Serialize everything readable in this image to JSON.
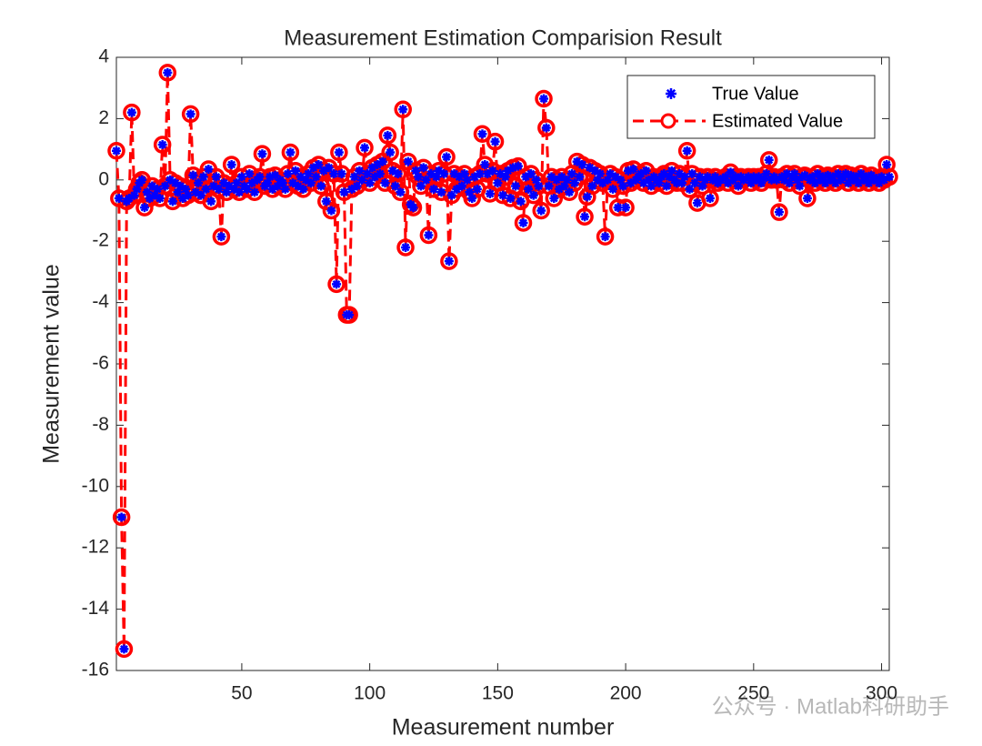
{
  "chart_data": {
    "type": "line",
    "title": "Measurement Estimation Comparision Result",
    "xlabel": "Measurement number",
    "ylabel": "Measurement value",
    "watermark": "公众号 · Matlab科研助手",
    "xlim": [
      1,
      303
    ],
    "ylim": [
      -16,
      4
    ],
    "xticks": [
      50,
      100,
      150,
      200,
      250,
      300
    ],
    "yticks": [
      -16,
      -14,
      -12,
      -10,
      -8,
      -6,
      -4,
      -2,
      0,
      2,
      4
    ],
    "legend": "northeast",
    "x": [
      1,
      2,
      3,
      4,
      5,
      6,
      7,
      8,
      9,
      10,
      11,
      12,
      13,
      14,
      15,
      16,
      17,
      18,
      19,
      20,
      21,
      22,
      23,
      24,
      25,
      26,
      27,
      28,
      29,
      30,
      31,
      32,
      33,
      34,
      35,
      36,
      37,
      38,
      39,
      40,
      41,
      42,
      43,
      44,
      45,
      46,
      47,
      48,
      49,
      50,
      51,
      52,
      53,
      54,
      55,
      56,
      57,
      58,
      59,
      60,
      61,
      62,
      63,
      64,
      65,
      66,
      67,
      68,
      69,
      70,
      71,
      72,
      73,
      74,
      75,
      76,
      77,
      78,
      79,
      80,
      81,
      82,
      83,
      84,
      85,
      86,
      87,
      88,
      89,
      90,
      91,
      92,
      93,
      94,
      95,
      96,
      97,
      98,
      99,
      100,
      101,
      102,
      103,
      104,
      105,
      106,
      107,
      108,
      109,
      110,
      111,
      112,
      113,
      114,
      115,
      116,
      117,
      118,
      119,
      120,
      121,
      122,
      123,
      124,
      125,
      126,
      127,
      128,
      129,
      130,
      131,
      132,
      133,
      134,
      135,
      136,
      137,
      138,
      139,
      140,
      141,
      142,
      143,
      144,
      145,
      146,
      147,
      148,
      149,
      150,
      151,
      152,
      153,
      154,
      155,
      156,
      157,
      158,
      159,
      160,
      161,
      162,
      163,
      164,
      165,
      166,
      167,
      168,
      169,
      170,
      171,
      172,
      173,
      174,
      175,
      176,
      177,
      178,
      179,
      180,
      181,
      182,
      183,
      184,
      185,
      186,
      187,
      188,
      189,
      190,
      191,
      192,
      193,
      194,
      195,
      196,
      197,
      198,
      199,
      200,
      201,
      202,
      203,
      204,
      205,
      206,
      207,
      208,
      209,
      210,
      211,
      212,
      213,
      214,
      215,
      216,
      217,
      218,
      219,
      220,
      221,
      222,
      223,
      224,
      225,
      226,
      227,
      228,
      229,
      230,
      231,
      232,
      233,
      234,
      235,
      236,
      237,
      238,
      239,
      240,
      241,
      242,
      243,
      244,
      245,
      246,
      247,
      248,
      249,
      250,
      251,
      252,
      253,
      254,
      255,
      256,
      257,
      258,
      259,
      260,
      261,
      262,
      263,
      264,
      265,
      266,
      267,
      268,
      269,
      270,
      271,
      272,
      273,
      274,
      275,
      276,
      277,
      278,
      279,
      280,
      281,
      282,
      283,
      284,
      285,
      286,
      287,
      288,
      289,
      290,
      291,
      292,
      293,
      294,
      295,
      296,
      297,
      298,
      299,
      300,
      301,
      302,
      303
    ],
    "series": [
      {
        "name": "True Value",
        "color": "#0000ff",
        "values": [
          0.95,
          -0.6,
          -11,
          -15.3,
          -0.7,
          -0.6,
          2.2,
          -0.5,
          -0.3,
          -0.1,
          0,
          -0.9,
          -0.4,
          -0.6,
          -0.2,
          -0.5,
          -0.3,
          -0.6,
          1.15,
          -0.2,
          3.5,
          0,
          -0.7,
          -0.1,
          -0.4,
          -0.2,
          -0.6,
          -0.3,
          -0.5,
          2.15,
          0.15,
          -0.4,
          -0.1,
          -0.5,
          0.1,
          -0.3,
          0.35,
          -0.7,
          -0.2,
          0.1,
          -0.3,
          -1.85,
          -0.1,
          -0.4,
          -0.2,
          0.5,
          -0.3,
          -0.1,
          -0.4,
          0.1,
          -0.2,
          -0.3,
          0.2,
          -0.1,
          -0.4,
          0,
          0.1,
          0.85,
          -0.2,
          -0.1,
          0.1,
          -0.3,
          0.15,
          -0.2,
          0,
          -0.1,
          -0.3,
          0.2,
          0.9,
          -0.1,
          0.3,
          -0.2,
          0.1,
          -0.3,
          0,
          0.2,
          -0.1,
          0.4,
          0.1,
          0.5,
          -0.2,
          0.3,
          -0.7,
          0.4,
          -1,
          0.2,
          -3.4,
          0.9,
          0.2,
          -0.4,
          -4.4,
          -4.4,
          -0.3,
          0.1,
          -0.2,
          0.3,
          0,
          1.05,
          0.2,
          -0.1,
          0.4,
          0.1,
          0.5,
          0.2,
          0.6,
          -0.1,
          1.45,
          0.9,
          0.3,
          -0.2,
          0.2,
          -0.4,
          2.3,
          -2.2,
          0.6,
          -0.8,
          -0.9,
          0.3,
          0.1,
          -0.2,
          0.4,
          0,
          -1.8,
          0.2,
          -0.3,
          0.1,
          0.3,
          -0.4,
          0.2,
          0.75,
          -2.65,
          -0.5,
          0.2,
          -0.3,
          0.1,
          -0.2,
          0.2,
          0,
          -0.4,
          -0.6,
          0.1,
          -0.3,
          0.2,
          1.5,
          0.5,
          0.2,
          -0.45,
          0.3,
          1.25,
          -0.1,
          0.2,
          -0.5,
          0.1,
          0.3,
          -0.6,
          0.4,
          -0.2,
          0.45,
          -0.7,
          -1.4,
          0.1,
          -0.3,
          0.2,
          -0.5,
          0,
          -0.2,
          -1,
          2.65,
          1.7,
          -0.2,
          0.1,
          -0.6,
          0,
          -0.3,
          0.1,
          -0.2,
          0,
          -0.4,
          0.2,
          -0.1,
          0.6,
          0.1,
          0.5,
          -1.2,
          -0.55,
          0.4,
          -0.2,
          0.3,
          0,
          0.2,
          -0.1,
          -1.85,
          0,
          0.2,
          -0.3,
          0.1,
          -0.9,
          0,
          -0.2,
          -0.9,
          0.3,
          -0.1,
          0.35,
          0,
          0.1,
          0.2,
          -0.1,
          0.3,
          0,
          -0.2,
          0.1,
          0,
          -0.1,
          0.1,
          0.2,
          -0.2,
          0.1,
          0.3,
          0,
          -0.1,
          0.2,
          -0.1,
          0.1,
          0.95,
          -0.3,
          0.2,
          -0.1,
          -0.75,
          0.1,
          -0.2,
          0,
          0.1,
          -0.6,
          0,
          0.1,
          -0.1,
          0,
          0.05,
          0.1,
          -0.1,
          0.25,
          0,
          0.1,
          -0.2,
          0.1,
          0,
          0.05,
          0.1,
          -0.1,
          0.1,
          0,
          0.1,
          -0.1,
          0.05,
          0.2,
          0.65,
          0,
          0.1,
          0,
          -1.05,
          0.1,
          0,
          0.2,
          -0.1,
          0.1,
          0.2,
          0,
          -0.2,
          0.1,
          0.15,
          -0.6,
          0,
          0.1,
          -0.1,
          0.2,
          0,
          0.1,
          -0.1,
          0.15,
          0,
          0.1,
          -0.1,
          0.2,
          0,
          0.1,
          0.2,
          -0.1,
          0.15,
          0,
          0.1,
          -0.1,
          0.2,
          0,
          0.1,
          -0.1,
          0.15,
          0,
          0.05,
          -0.1,
          0.1,
          0,
          0.5,
          0.1
        ]
      },
      {
        "name": "Estimated Value",
        "color": "#ff0000",
        "values": [
          0.95,
          -0.6,
          -11,
          -15.3,
          -0.7,
          -0.6,
          2.2,
          -0.5,
          -0.3,
          -0.1,
          0,
          -0.9,
          -0.4,
          -0.6,
          -0.2,
          -0.5,
          -0.3,
          -0.6,
          1.15,
          -0.2,
          3.5,
          0,
          -0.7,
          -0.1,
          -0.4,
          -0.2,
          -0.6,
          -0.3,
          -0.5,
          2.15,
          0.15,
          -0.4,
          -0.1,
          -0.5,
          0.1,
          -0.3,
          0.35,
          -0.7,
          -0.2,
          0.1,
          -0.3,
          -1.85,
          -0.1,
          -0.4,
          -0.2,
          0.5,
          -0.3,
          -0.1,
          -0.4,
          0.1,
          -0.2,
          -0.3,
          0.2,
          -0.1,
          -0.4,
          0,
          0.1,
          0.85,
          -0.2,
          -0.1,
          0.1,
          -0.3,
          0.15,
          -0.2,
          0,
          -0.1,
          -0.3,
          0.2,
          0.9,
          -0.1,
          0.3,
          -0.2,
          0.1,
          -0.3,
          0,
          0.2,
          -0.1,
          0.4,
          0.1,
          0.5,
          -0.2,
          0.3,
          -0.7,
          0.4,
          -1,
          0.2,
          -3.4,
          0.9,
          0.2,
          -0.4,
          -4.4,
          -4.4,
          -0.3,
          0.1,
          -0.2,
          0.3,
          0,
          1.05,
          0.2,
          -0.1,
          0.4,
          0.1,
          0.5,
          0.2,
          0.6,
          -0.1,
          1.45,
          0.9,
          0.3,
          -0.2,
          0.2,
          -0.4,
          2.3,
          -2.2,
          0.6,
          -0.8,
          -0.9,
          0.3,
          0.1,
          -0.2,
          0.4,
          0,
          -1.8,
          0.2,
          -0.3,
          0.1,
          0.3,
          -0.4,
          0.2,
          0.75,
          -2.65,
          -0.5,
          0.2,
          -0.3,
          0.1,
          -0.2,
          0.2,
          0,
          -0.4,
          -0.6,
          0.1,
          -0.3,
          0.2,
          1.5,
          0.5,
          0.2,
          -0.45,
          0.3,
          1.25,
          -0.1,
          0.2,
          -0.5,
          0.1,
          0.3,
          -0.6,
          0.4,
          -0.2,
          0.45,
          -0.7,
          -1.4,
          0.1,
          -0.3,
          0.2,
          -0.5,
          0,
          -0.2,
          -1,
          2.65,
          1.7,
          -0.2,
          0.1,
          -0.6,
          0,
          -0.3,
          0.1,
          -0.2,
          0,
          -0.4,
          0.2,
          -0.1,
          0.6,
          0.1,
          0.5,
          -1.2,
          -0.55,
          0.4,
          -0.2,
          0.3,
          0,
          0.2,
          -0.1,
          -1.85,
          0,
          0.2,
          -0.3,
          0.1,
          -0.9,
          0,
          -0.2,
          -0.9,
          0.3,
          -0.1,
          0.35,
          0,
          0.1,
          0.2,
          -0.1,
          0.3,
          0,
          -0.2,
          0.1,
          0,
          -0.1,
          0.1,
          0.2,
          -0.2,
          0.1,
          0.3,
          0,
          -0.1,
          0.2,
          -0.1,
          0.1,
          0.95,
          -0.3,
          0.2,
          -0.1,
          -0.75,
          0.1,
          -0.2,
          0,
          0.1,
          -0.6,
          0,
          0.1,
          -0.1,
          0,
          0.05,
          0.1,
          -0.1,
          0.25,
          0,
          0.1,
          -0.2,
          0.1,
          0,
          0.05,
          0.1,
          -0.1,
          0.1,
          0,
          0.1,
          -0.1,
          0.05,
          0.2,
          0.65,
          0,
          0.1,
          0,
          -1.05,
          0.1,
          0,
          0.2,
          -0.1,
          0.1,
          0.2,
          0,
          -0.2,
          0.1,
          0.15,
          -0.6,
          0,
          0.1,
          -0.1,
          0.2,
          0,
          0.1,
          -0.1,
          0.15,
          0,
          0.1,
          -0.1,
          0.2,
          0,
          0.1,
          0.2,
          -0.1,
          0.15,
          0,
          0.1,
          -0.1,
          0.2,
          0,
          0.1,
          -0.1,
          0.15,
          0,
          0.05,
          -0.1,
          0.1,
          0,
          0.5,
          0.1
        ]
      }
    ]
  }
}
